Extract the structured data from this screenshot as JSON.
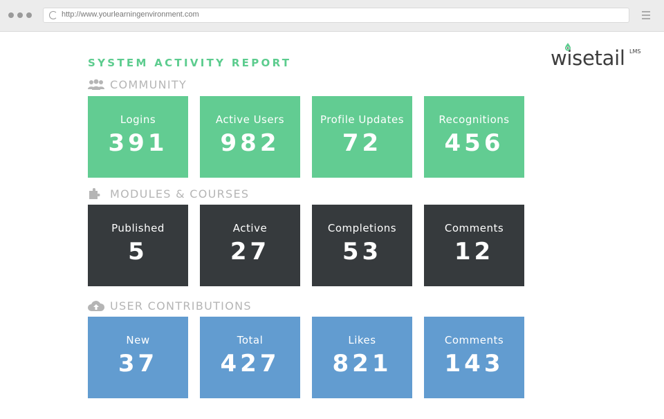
{
  "browser": {
    "url": "http://www.yourlearningenvironment.com"
  },
  "report": {
    "title": "SYSTEM ACTIVITY REPORT"
  },
  "logo": {
    "name": "wisetail",
    "superscript": "LMS"
  },
  "colors": {
    "community": "#62cc92",
    "modules": "#363a3d",
    "contributions": "#629cd0",
    "title": "#5ccc8e",
    "section_label": "#b5b5b5"
  },
  "sections": [
    {
      "label": "COMMUNITY",
      "icon": "users-icon",
      "tiles": [
        {
          "label": "Logins",
          "value": "391"
        },
        {
          "label": "Active Users",
          "value": "982"
        },
        {
          "label": "Profile Updates",
          "value": "72"
        },
        {
          "label": "Recognitions",
          "value": "456"
        }
      ]
    },
    {
      "label": "MODULES & COURSES",
      "icon": "puzzle-icon",
      "tiles": [
        {
          "label": "Published",
          "value": "5"
        },
        {
          "label": "Active",
          "value": "27"
        },
        {
          "label": "Completions",
          "value": "53"
        },
        {
          "label": "Comments",
          "value": "12"
        }
      ]
    },
    {
      "label": "USER CONTRIBUTIONS",
      "icon": "cloud-upload-icon",
      "tiles": [
        {
          "label": "New",
          "value": "37"
        },
        {
          "label": "Total",
          "value": "427"
        },
        {
          "label": "Likes",
          "value": "821"
        },
        {
          "label": "Comments",
          "value": "143"
        }
      ]
    }
  ]
}
